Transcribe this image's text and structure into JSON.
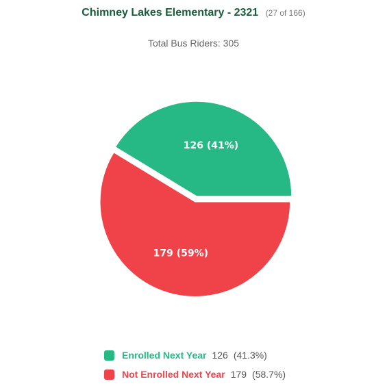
{
  "header": {
    "title": "Chimney Lakes Elementary - 2321",
    "rank": "(27 of 166)",
    "subtitle": "Total Bus Riders: 305"
  },
  "chart_data": {
    "type": "pie",
    "title": "Chimney Lakes Elementary - 2321",
    "subtitle": "Total Bus Riders: 305",
    "total": 305,
    "slices": [
      {
        "name": "Enrolled Next Year",
        "value": 126,
        "percent": 41.3,
        "data_label": "126 (41%)",
        "legend_value": "126",
        "legend_percent": "(41.3%)",
        "color": "#26b985",
        "exploded": false
      },
      {
        "name": "Not Enrolled Next Year",
        "value": 179,
        "percent": 58.7,
        "data_label": "179 (59%)",
        "legend_value": "179",
        "legend_percent": "(58.7%)",
        "color": "#ef4249",
        "exploded": true
      }
    ],
    "legend_position": "bottom"
  }
}
